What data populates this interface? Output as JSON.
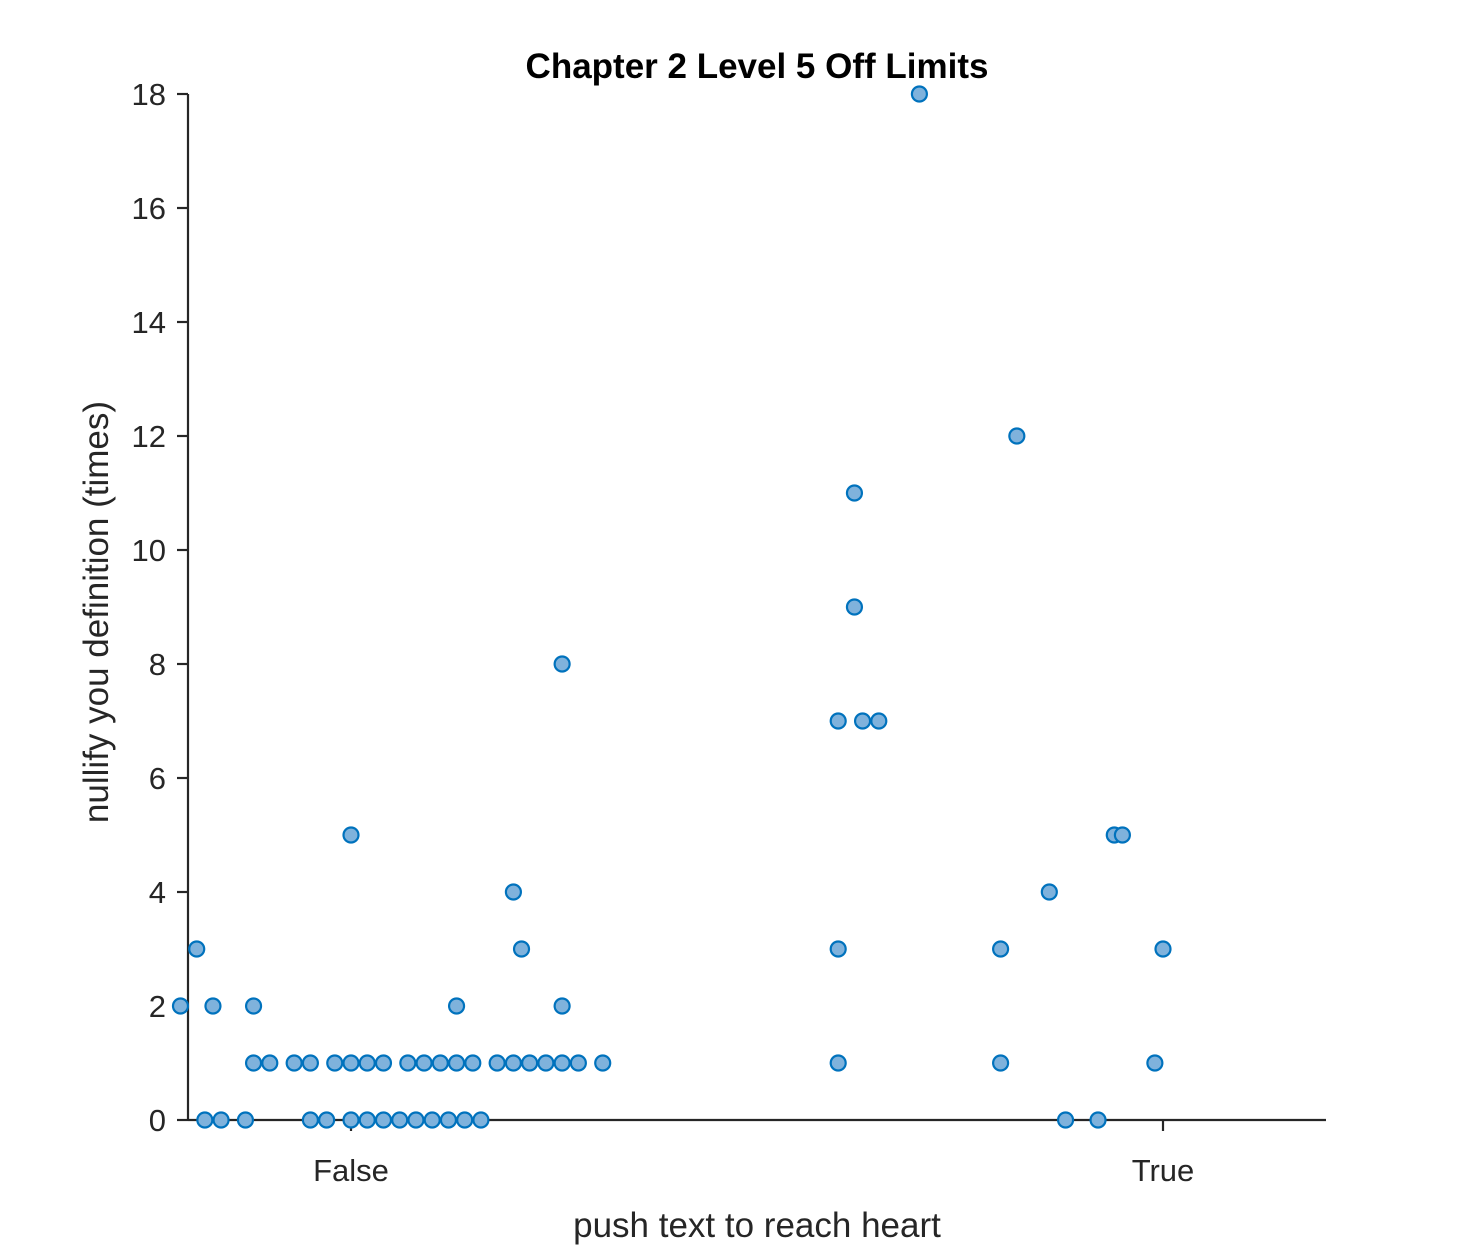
{
  "chart_data": {
    "type": "scatter",
    "title": "Chapter 2 Level 5 Off Limits",
    "xlabel": "push text to reach heart",
    "ylabel": "nullify you definition (times)",
    "categories": [
      "False",
      "True"
    ],
    "ylim": [
      0,
      18
    ],
    "yticks": [
      0,
      2,
      4,
      6,
      8,
      10,
      12,
      14,
      16,
      18
    ],
    "grid": false,
    "legend": "none",
    "colors": {
      "marker_fill": "#7fb2dc",
      "marker_edge": "#0072bd",
      "axis": "#262626"
    },
    "points": [
      {
        "x": 0.82,
        "y": 0
      },
      {
        "x": 0.84,
        "y": 0
      },
      {
        "x": 0.87,
        "y": 0
      },
      {
        "x": 0.95,
        "y": 0
      },
      {
        "x": 0.97,
        "y": 0
      },
      {
        "x": 1.0,
        "y": 0
      },
      {
        "x": 1.02,
        "y": 0
      },
      {
        "x": 1.04,
        "y": 0
      },
      {
        "x": 1.06,
        "y": 0
      },
      {
        "x": 1.08,
        "y": 0
      },
      {
        "x": 1.1,
        "y": 0
      },
      {
        "x": 1.12,
        "y": 0
      },
      {
        "x": 1.14,
        "y": 0
      },
      {
        "x": 1.16,
        "y": 0
      },
      {
        "x": 0.88,
        "y": 1
      },
      {
        "x": 0.9,
        "y": 1
      },
      {
        "x": 0.93,
        "y": 1
      },
      {
        "x": 0.95,
        "y": 1
      },
      {
        "x": 0.98,
        "y": 1
      },
      {
        "x": 1.0,
        "y": 1
      },
      {
        "x": 1.02,
        "y": 1
      },
      {
        "x": 1.04,
        "y": 1
      },
      {
        "x": 1.07,
        "y": 1
      },
      {
        "x": 1.09,
        "y": 1
      },
      {
        "x": 1.11,
        "y": 1
      },
      {
        "x": 1.13,
        "y": 1
      },
      {
        "x": 1.15,
        "y": 1
      },
      {
        "x": 1.18,
        "y": 1
      },
      {
        "x": 1.2,
        "y": 1
      },
      {
        "x": 1.22,
        "y": 1
      },
      {
        "x": 1.24,
        "y": 1
      },
      {
        "x": 1.26,
        "y": 1
      },
      {
        "x": 1.28,
        "y": 1
      },
      {
        "x": 1.31,
        "y": 1
      },
      {
        "x": 0.79,
        "y": 2
      },
      {
        "x": 0.83,
        "y": 2
      },
      {
        "x": 0.88,
        "y": 2
      },
      {
        "x": 1.13,
        "y": 2
      },
      {
        "x": 1.26,
        "y": 2
      },
      {
        "x": 0.81,
        "y": 3
      },
      {
        "x": 1.21,
        "y": 3
      },
      {
        "x": 1.2,
        "y": 4
      },
      {
        "x": 1.0,
        "y": 5
      },
      {
        "x": 1.26,
        "y": 8
      },
      {
        "x": 1.88,
        "y": 0
      },
      {
        "x": 1.92,
        "y": 0
      },
      {
        "x": 1.6,
        "y": 1
      },
      {
        "x": 1.8,
        "y": 1
      },
      {
        "x": 1.99,
        "y": 1
      },
      {
        "x": 1.6,
        "y": 3
      },
      {
        "x": 1.8,
        "y": 3
      },
      {
        "x": 2.0,
        "y": 3
      },
      {
        "x": 1.86,
        "y": 4
      },
      {
        "x": 1.94,
        "y": 5
      },
      {
        "x": 1.95,
        "y": 5
      },
      {
        "x": 1.6,
        "y": 7
      },
      {
        "x": 1.63,
        "y": 7
      },
      {
        "x": 1.65,
        "y": 7
      },
      {
        "x": 1.62,
        "y": 9
      },
      {
        "x": 1.62,
        "y": 11
      },
      {
        "x": 1.82,
        "y": 12
      },
      {
        "x": 1.7,
        "y": 18
      }
    ]
  }
}
